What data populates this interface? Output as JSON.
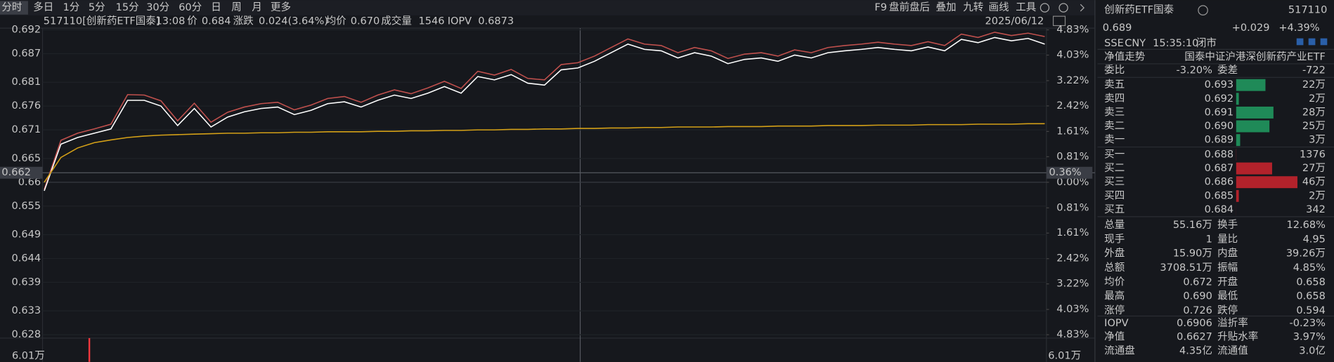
{
  "toolbar": {
    "tabs": [
      "分时",
      "多日",
      "1分",
      "5分",
      "15分",
      "30分",
      "60分",
      "日",
      "周",
      "月",
      "更多"
    ],
    "tools": [
      "F9",
      "盘前盘后",
      "叠加",
      "九转",
      "画线",
      "工具"
    ]
  },
  "info": {
    "code": "517110[创新药ETF国泰]",
    "time": "13:08",
    "price_label": "价",
    "price": "0.684",
    "change_label": "涨跌",
    "change": "0.024(3.64%)",
    "avg_label": "均价",
    "avg": "0.670",
    "vol_label": "成交量",
    "vol": "1546",
    "iopv_label": "IOPV",
    "iopv": "0.6873",
    "date": "2025/06/12"
  },
  "chart": {
    "type": "line",
    "ylim": [
      0.628,
      0.692
    ],
    "yticks": [
      0.692,
      0.687,
      0.681,
      0.676,
      0.671,
      0.665,
      0.66,
      0.655,
      0.649,
      0.644,
      0.639,
      0.633,
      0.628
    ],
    "y2lim": [
      -4.83,
      4.83
    ],
    "y2ticks": [
      {
        "value": 4.83,
        "label": "4.83%"
      },
      {
        "value": 4.03,
        "label": "4.03%"
      },
      {
        "value": 3.22,
        "label": "3.22%"
      },
      {
        "value": 2.42,
        "label": "2.42%"
      },
      {
        "value": 1.61,
        "label": "1.61%"
      },
      {
        "value": 0.81,
        "label": "0.81%"
      },
      {
        "value": 0,
        "label": "0.00%"
      },
      {
        "value": -0.81,
        "label": "0.81%"
      },
      {
        "value": -1.61,
        "label": "1.61%"
      },
      {
        "value": -2.42,
        "label": "2.42%"
      },
      {
        "value": -3.22,
        "label": "3.22%"
      },
      {
        "value": -4.03,
        "label": "4.03%"
      },
      {
        "value": -4.83,
        "label": "4.83%"
      }
    ],
    "crosshair": {
      "value": 0.662,
      "pct": {
        "value": 0.36,
        "label": "0.36%"
      }
    },
    "volume_max": {
      "value": 60100,
      "label": "6.01万"
    },
    "series": [
      {
        "color": "#c0504d",
        "values": [
          0.6585,
          0.6688,
          0.6703,
          0.6712,
          0.6722,
          0.6784,
          0.6783,
          0.6771,
          0.6729,
          0.6766,
          0.6726,
          0.6747,
          0.6758,
          0.6765,
          0.6768,
          0.6752,
          0.6762,
          0.6776,
          0.678,
          0.6768,
          0.6783,
          0.6794,
          0.6786,
          0.6798,
          0.6812,
          0.6797,
          0.6833,
          0.6825,
          0.6837,
          0.6818,
          0.6815,
          0.6847,
          0.6851,
          0.6865,
          0.6883,
          0.6901,
          0.689,
          0.6887,
          0.6872,
          0.6883,
          0.6876,
          0.686,
          0.6869,
          0.6872,
          0.6865,
          0.6878,
          0.6872,
          0.6883,
          0.6887,
          0.689,
          0.6894,
          0.689,
          0.6887,
          0.6895,
          0.6887,
          0.6911,
          0.6904,
          0.6915,
          0.6908,
          0.6913,
          0.6906
        ]
      },
      {
        "color": "#ffffff",
        "values": [
          0.6582,
          0.668,
          0.6694,
          0.6703,
          0.6712,
          0.6772,
          0.6772,
          0.676,
          0.6719,
          0.6755,
          0.6716,
          0.6737,
          0.6748,
          0.6755,
          0.6758,
          0.6742,
          0.6751,
          0.6765,
          0.6769,
          0.6758,
          0.6772,
          0.6783,
          0.6776,
          0.6787,
          0.6801,
          0.6787,
          0.6822,
          0.6815,
          0.6826,
          0.6808,
          0.6804,
          0.6836,
          0.684,
          0.6854,
          0.6872,
          0.689,
          0.6879,
          0.6876,
          0.6861,
          0.6872,
          0.6865,
          0.6849,
          0.6858,
          0.6861,
          0.6854,
          0.6867,
          0.6861,
          0.6872,
          0.6876,
          0.6879,
          0.6883,
          0.6879,
          0.6876,
          0.6884,
          0.6876,
          0.69,
          0.6893,
          0.6904,
          0.6897,
          0.6902,
          0.689
        ]
      },
      {
        "color": "#d4a017",
        "values": [
          0.66,
          0.6652,
          0.6672,
          0.6683,
          0.6689,
          0.6694,
          0.6697,
          0.6699,
          0.67,
          0.6701,
          0.6702,
          0.6703,
          0.6703,
          0.6704,
          0.6704,
          0.6705,
          0.6705,
          0.6706,
          0.6706,
          0.6706,
          0.6707,
          0.6707,
          0.6708,
          0.6708,
          0.6709,
          0.6709,
          0.671,
          0.671,
          0.6711,
          0.6711,
          0.6712,
          0.6712,
          0.6713,
          0.6713,
          0.6714,
          0.6714,
          0.6715,
          0.6715,
          0.6716,
          0.6716,
          0.6716,
          0.6717,
          0.6717,
          0.6717,
          0.6718,
          0.6718,
          0.6718,
          0.6719,
          0.6719,
          0.6719,
          0.672,
          0.672,
          0.672,
          0.6721,
          0.6721,
          0.6721,
          0.6722,
          0.6722,
          0.6722,
          0.6723,
          0.6723
        ]
      }
    ]
  },
  "quote": {
    "name": "创新药ETF国泰",
    "code": "517110",
    "price": "0.689",
    "change": "+0.029",
    "change_pct": "+4.39%",
    "meta": [
      "SSE",
      "CNY",
      "15:35:10",
      "闭市"
    ],
    "tab": "净值走势",
    "fullname": "国泰中证沪港深创新药产业ETF",
    "ratio": {
      "label": "委比",
      "value": "-3.20%"
    },
    "diff": {
      "label": "委差",
      "value": "-722"
    },
    "asks": [
      {
        "label": "卖五",
        "price": "0.693",
        "volume": {
          "value": 220000,
          "label": "22万"
        }
      },
      {
        "label": "卖四",
        "price": "0.692",
        "volume": {
          "value": 20000,
          "label": "2万"
        }
      },
      {
        "label": "卖三",
        "price": "0.691",
        "volume": {
          "value": 280000,
          "label": "28万"
        }
      },
      {
        "label": "卖二",
        "price": "0.690",
        "volume": {
          "value": 250000,
          "label": "25万"
        }
      },
      {
        "label": "卖一",
        "price": "0.689",
        "volume": {
          "value": 30000,
          "label": "3万"
        }
      }
    ],
    "bids": [
      {
        "label": "买一",
        "price": "0.688",
        "volume": 1376
      },
      {
        "label": "买二",
        "price": "0.687",
        "volume": {
          "value": 270000,
          "label": "27万"
        }
      },
      {
        "label": "买三",
        "price": "0.686",
        "volume": {
          "value": 460000,
          "label": "46万"
        }
      },
      {
        "label": "买四",
        "price": "0.685",
        "volume": {
          "value": 20000,
          "label": "2万"
        }
      },
      {
        "label": "买五",
        "price": "0.684",
        "volume": 342
      }
    ],
    "stats": [
      {
        "l1": "总量",
        "v1": "55.16万",
        "c1": "white",
        "l2": "换手",
        "v2": "12.68%",
        "c2": "white"
      },
      {
        "l1": "现手",
        "v1": "1",
        "c1": "white",
        "l2": "量比",
        "v2": "4.95",
        "c2": "white"
      },
      {
        "l1": "外盘",
        "v1": "15.90万",
        "c1": "red",
        "l2": "内盘",
        "v2": "39.26万",
        "c2": "green"
      },
      {
        "l1": "总额",
        "v1": "3708.51万",
        "c1": "white",
        "l2": "振幅",
        "v2": "4.85%",
        "c2": "white"
      },
      {
        "l1": "均价",
        "v1": "0.672",
        "c1": "red",
        "l2": "开盘",
        "v2": "0.658",
        "c2": "green"
      },
      {
        "l1": "最高",
        "v1": "0.690",
        "c1": "red",
        "l2": "最低",
        "v2": "0.658",
        "c2": "green"
      },
      {
        "l1": "涨停",
        "v1": "0.726",
        "c1": "red",
        "l2": "跌停",
        "v2": "0.594",
        "c2": "green"
      },
      {
        "l1": "IOPV",
        "v1": "0.6906",
        "c1": "white",
        "l2": "溢折率",
        "v2": "-0.23%",
        "c2": "green"
      },
      {
        "l1": "净值",
        "v1": "0.6627",
        "c1": "green",
        "l2": "升贴水率",
        "v2": "3.97%",
        "c2": "red"
      },
      {
        "l1": "流通盘",
        "v1": "4.35亿",
        "c1": "white",
        "l2": "流通值",
        "v2": "3.0亿",
        "c2": "white"
      }
    ]
  }
}
